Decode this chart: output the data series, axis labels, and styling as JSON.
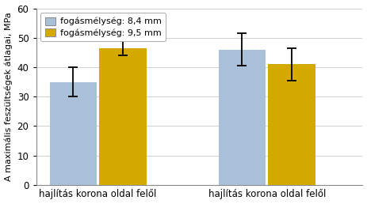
{
  "groups": [
    "hajlítás korona oldal felől",
    "hajlítás korona oldal felől"
  ],
  "series": [
    {
      "label": "fogásmélység: 8,4 mm",
      "color": "#aabfd8",
      "edge_color": "#aabfd8",
      "values": [
        35.0,
        46.0
      ],
      "errors_up": [
        5.0,
        5.5
      ],
      "errors_down": [
        5.0,
        5.5
      ]
    },
    {
      "label": "fogásmélység: 9,5 mm",
      "color": "#d4aa00",
      "edge_color": "#d4aa00",
      "values": [
        46.5,
        41.0
      ],
      "errors_up": [
        2.5,
        5.5
      ],
      "errors_down": [
        2.5,
        5.5
      ]
    }
  ],
  "ylabel": "A maximális feszültségek átlagai, MPa",
  "ylim": [
    0,
    60
  ],
  "yticks": [
    0,
    10,
    20,
    30,
    40,
    50,
    60
  ],
  "bar_width": 0.42,
  "group_positions": [
    0.75,
    2.25
  ],
  "group_offsets": [
    -0.22,
    0.22
  ],
  "background_color": "#ffffff",
  "grid_color": "#d0d0d0",
  "legend_fontsize": 8.0,
  "axis_fontsize": 8.0,
  "tick_fontsize": 8.5,
  "ylabel_fontsize": 8.0
}
